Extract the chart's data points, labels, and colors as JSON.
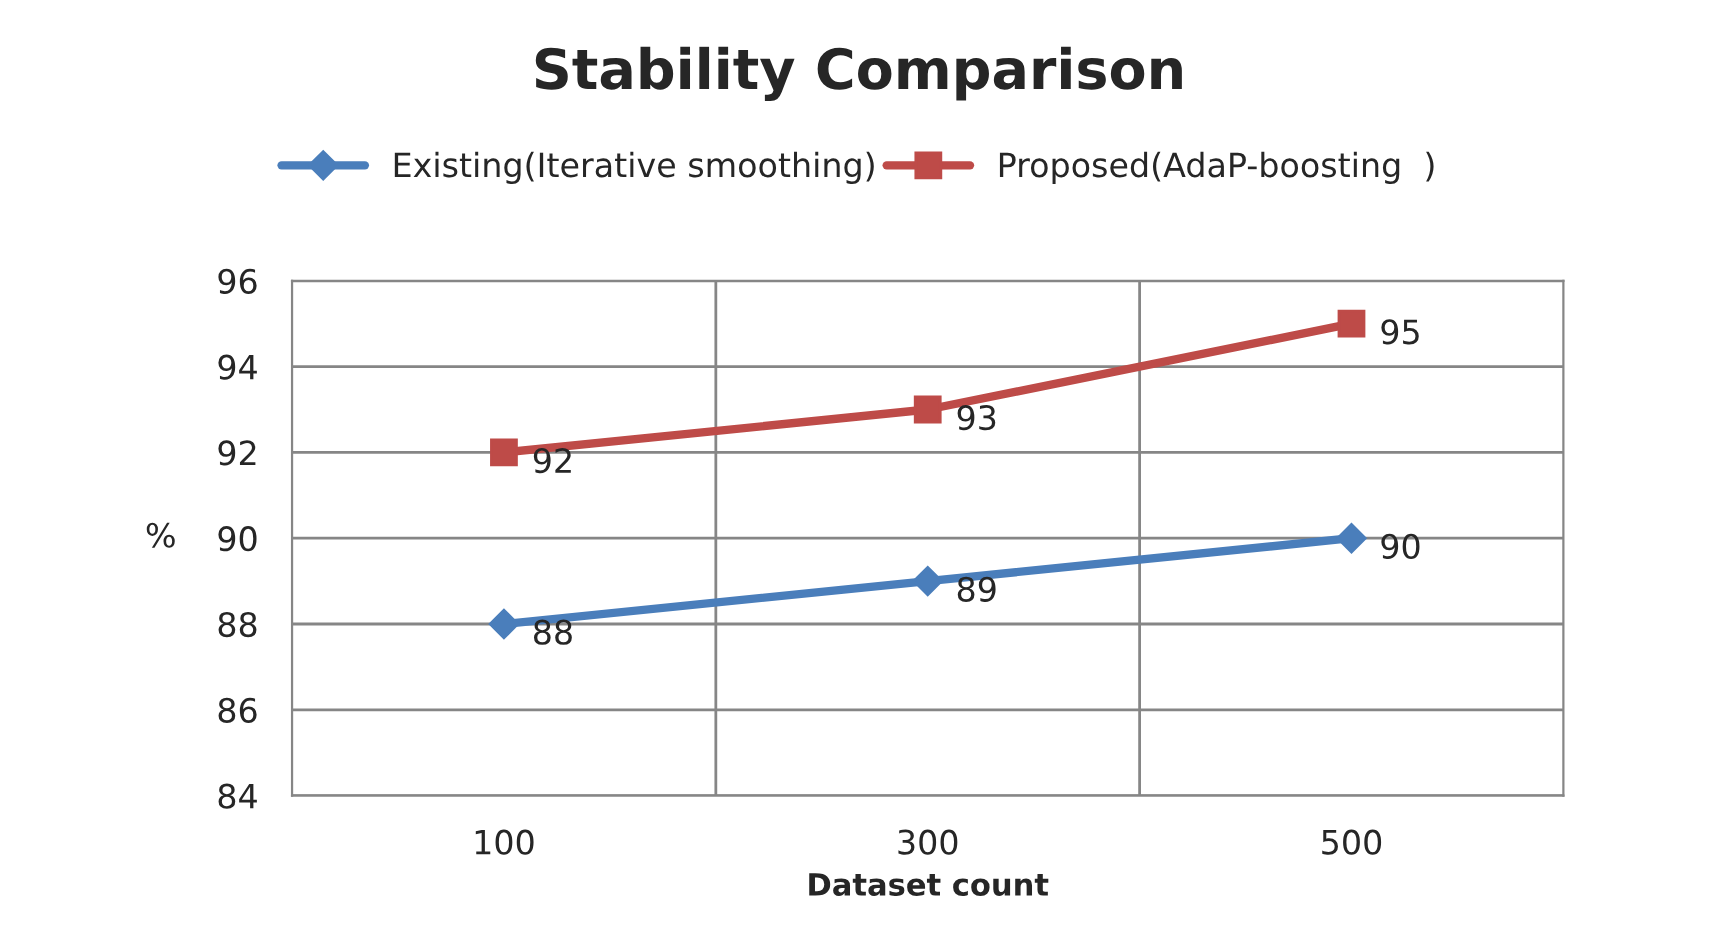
{
  "chart_data": {
    "type": "line",
    "title": "Stability Comparison",
    "xlabel": "Dataset count",
    "ylabel": "%",
    "categories": [
      "100",
      "300",
      "500"
    ],
    "series": [
      {
        "name": "Existing(Iterative smoothing)",
        "color": "#4a7ebb",
        "values": [
          88,
          89,
          90
        ],
        "marker": "diamond"
      },
      {
        "name": "Proposed(AdaP-boosting  )",
        "color": "#be4b48",
        "values": [
          92,
          93,
          95
        ],
        "marker": "square"
      }
    ],
    "ylim": [
      84,
      96
    ],
    "yticks": [
      84,
      86,
      88,
      90,
      92,
      94,
      96
    ],
    "grid": true,
    "legend": "top",
    "data_labels": true,
    "line_style": "solid"
  }
}
